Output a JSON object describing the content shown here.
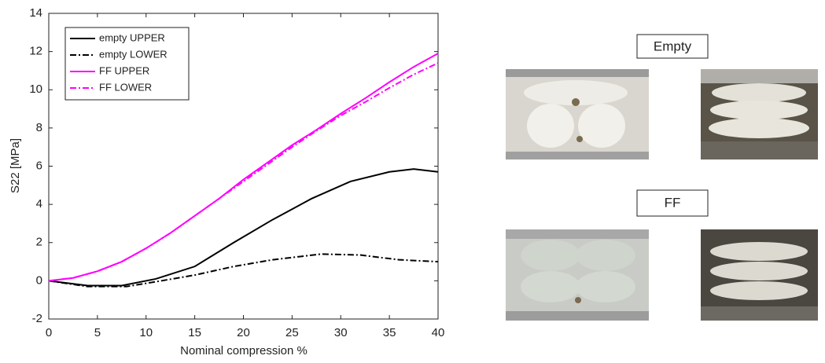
{
  "chart_data": {
    "type": "line",
    "xlabel": "Nominal compression %",
    "ylabel": "S22 [MPa]",
    "xlim": [
      0,
      40
    ],
    "ylim": [
      -2,
      14
    ],
    "xticks": [
      0,
      5,
      10,
      15,
      20,
      25,
      30,
      35,
      40
    ],
    "yticks": [
      -2,
      0,
      2,
      4,
      6,
      8,
      10,
      12,
      14
    ],
    "grid": false,
    "legend": "upper left",
    "series": [
      {
        "name": "empty UPPER",
        "color": "#000000",
        "dash": "solid",
        "x": [
          0,
          4,
          7.5,
          11,
          15,
          19,
          23,
          27,
          31,
          35,
          37.5,
          40
        ],
        "values": [
          0,
          -0.25,
          -0.25,
          0.1,
          0.75,
          2.0,
          3.2,
          4.3,
          5.2,
          5.7,
          5.85,
          5.7
        ]
      },
      {
        "name": "empty LOWER",
        "color": "#000000",
        "dash": "dashdot",
        "x": [
          0,
          4,
          8,
          11,
          15,
          19,
          23,
          28,
          32,
          36,
          40
        ],
        "values": [
          0,
          -0.3,
          -0.3,
          -0.05,
          0.3,
          0.75,
          1.1,
          1.4,
          1.35,
          1.1,
          1.0
        ]
      },
      {
        "name": "FF UPPER",
        "color": "#ff00ff",
        "dash": "solid",
        "x": [
          0,
          2.5,
          5,
          7.5,
          10,
          12.5,
          15,
          17.5,
          20,
          22.5,
          25,
          27.5,
          30,
          32.5,
          35,
          37.5,
          40
        ],
        "values": [
          0,
          0.15,
          0.5,
          1.0,
          1.7,
          2.5,
          3.4,
          4.3,
          5.3,
          6.2,
          7.1,
          7.9,
          8.75,
          9.55,
          10.4,
          11.2,
          11.9
        ]
      },
      {
        "name": "FF LOWER",
        "color": "#ff00ff",
        "dash": "dashdot",
        "x": [
          0,
          2.5,
          5,
          7.5,
          10,
          12.5,
          15,
          17.5,
          20,
          22.5,
          25,
          27.5,
          30,
          32.5,
          35,
          37.5,
          40
        ],
        "values": [
          0,
          0.15,
          0.5,
          1.0,
          1.7,
          2.5,
          3.4,
          4.3,
          5.2,
          6.1,
          7.0,
          7.85,
          8.65,
          9.35,
          10.1,
          10.8,
          11.4
        ]
      }
    ]
  },
  "panels": [
    {
      "label": "Empty"
    },
    {
      "label": "FF"
    }
  ]
}
